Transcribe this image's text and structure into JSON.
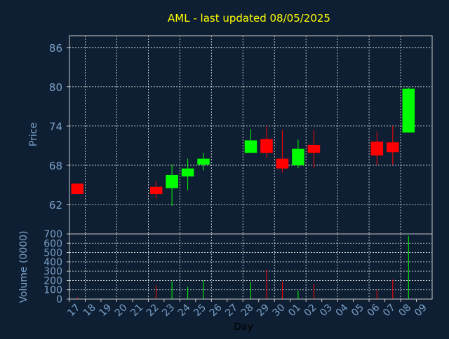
{
  "colors": {
    "background": "#0f1f33",
    "frame": "#c8c8c8",
    "grid": "#e8e8e8",
    "title": "#ffff00",
    "axis_text": "#7aa0c8",
    "xlabel_text": "#000000",
    "up": "#00ff00",
    "down": "#ff0000"
  },
  "chart_data": [
    {
      "type": "candlestick",
      "title": "AML - last updated 08/05/2025",
      "ylabel": "Price",
      "ylim": [
        57.5,
        87.8
      ],
      "yticks": [
        62,
        68,
        74,
        80,
        86
      ],
      "grid": true,
      "days": [
        "17",
        "18",
        "19",
        "20",
        "21",
        "22",
        "23",
        "24",
        "25",
        "26",
        "27",
        "28",
        "29",
        "30",
        "01",
        "02",
        "03",
        "04",
        "05",
        "06",
        "07",
        "08",
        "09"
      ],
      "candles": [
        {
          "day": "17",
          "open": 65.2,
          "high": 65.2,
          "low": 63.6,
          "close": 63.6
        },
        {
          "day": "22",
          "open": 64.7,
          "high": 65.6,
          "low": 62.9,
          "close": 63.6
        },
        {
          "day": "23",
          "open": 64.5,
          "high": 68.1,
          "low": 61.8,
          "close": 66.5
        },
        {
          "day": "24",
          "open": 66.3,
          "high": 69.0,
          "low": 64.2,
          "close": 67.5
        },
        {
          "day": "25",
          "open": 68.1,
          "high": 69.9,
          "low": 67.2,
          "close": 69.0
        },
        {
          "day": "28",
          "open": 69.9,
          "high": 73.5,
          "low": 69.9,
          "close": 71.8
        },
        {
          "day": "29",
          "open": 72.0,
          "high": 74.0,
          "low": 69.2,
          "close": 69.9
        },
        {
          "day": "30",
          "open": 69.0,
          "high": 73.4,
          "low": 66.9,
          "close": 67.5
        },
        {
          "day": "01",
          "open": 68.0,
          "high": 71.9,
          "low": 67.6,
          "close": 70.5
        },
        {
          "day": "02",
          "open": 71.1,
          "high": 73.3,
          "low": 67.6,
          "close": 69.9
        },
        {
          "day": "06",
          "open": 71.6,
          "high": 73.1,
          "low": 68.0,
          "close": 69.5
        },
        {
          "day": "07",
          "open": 71.5,
          "high": 74.0,
          "low": 68.1,
          "close": 70.0
        },
        {
          "day": "08",
          "open": 73.0,
          "high": 79.9,
          "low": 73.0,
          "close": 79.7
        }
      ]
    },
    {
      "type": "bar",
      "xlabel": "Day",
      "ylabel": "Volume (0000)",
      "ylim": [
        0,
        700
      ],
      "yticks": [
        0,
        100,
        200,
        300,
        400,
        500,
        600,
        700
      ],
      "grid": true,
      "categories": [
        "17",
        "18",
        "19",
        "20",
        "21",
        "22",
        "23",
        "24",
        "25",
        "26",
        "27",
        "28",
        "29",
        "30",
        "01",
        "02",
        "03",
        "04",
        "05",
        "06",
        "07",
        "08",
        "09"
      ],
      "values": [
        20,
        0,
        0,
        0,
        0,
        150,
        190,
        130,
        200,
        0,
        0,
        180,
        320,
        190,
        90,
        160,
        0,
        0,
        0,
        100,
        210,
        680,
        0
      ]
    }
  ]
}
